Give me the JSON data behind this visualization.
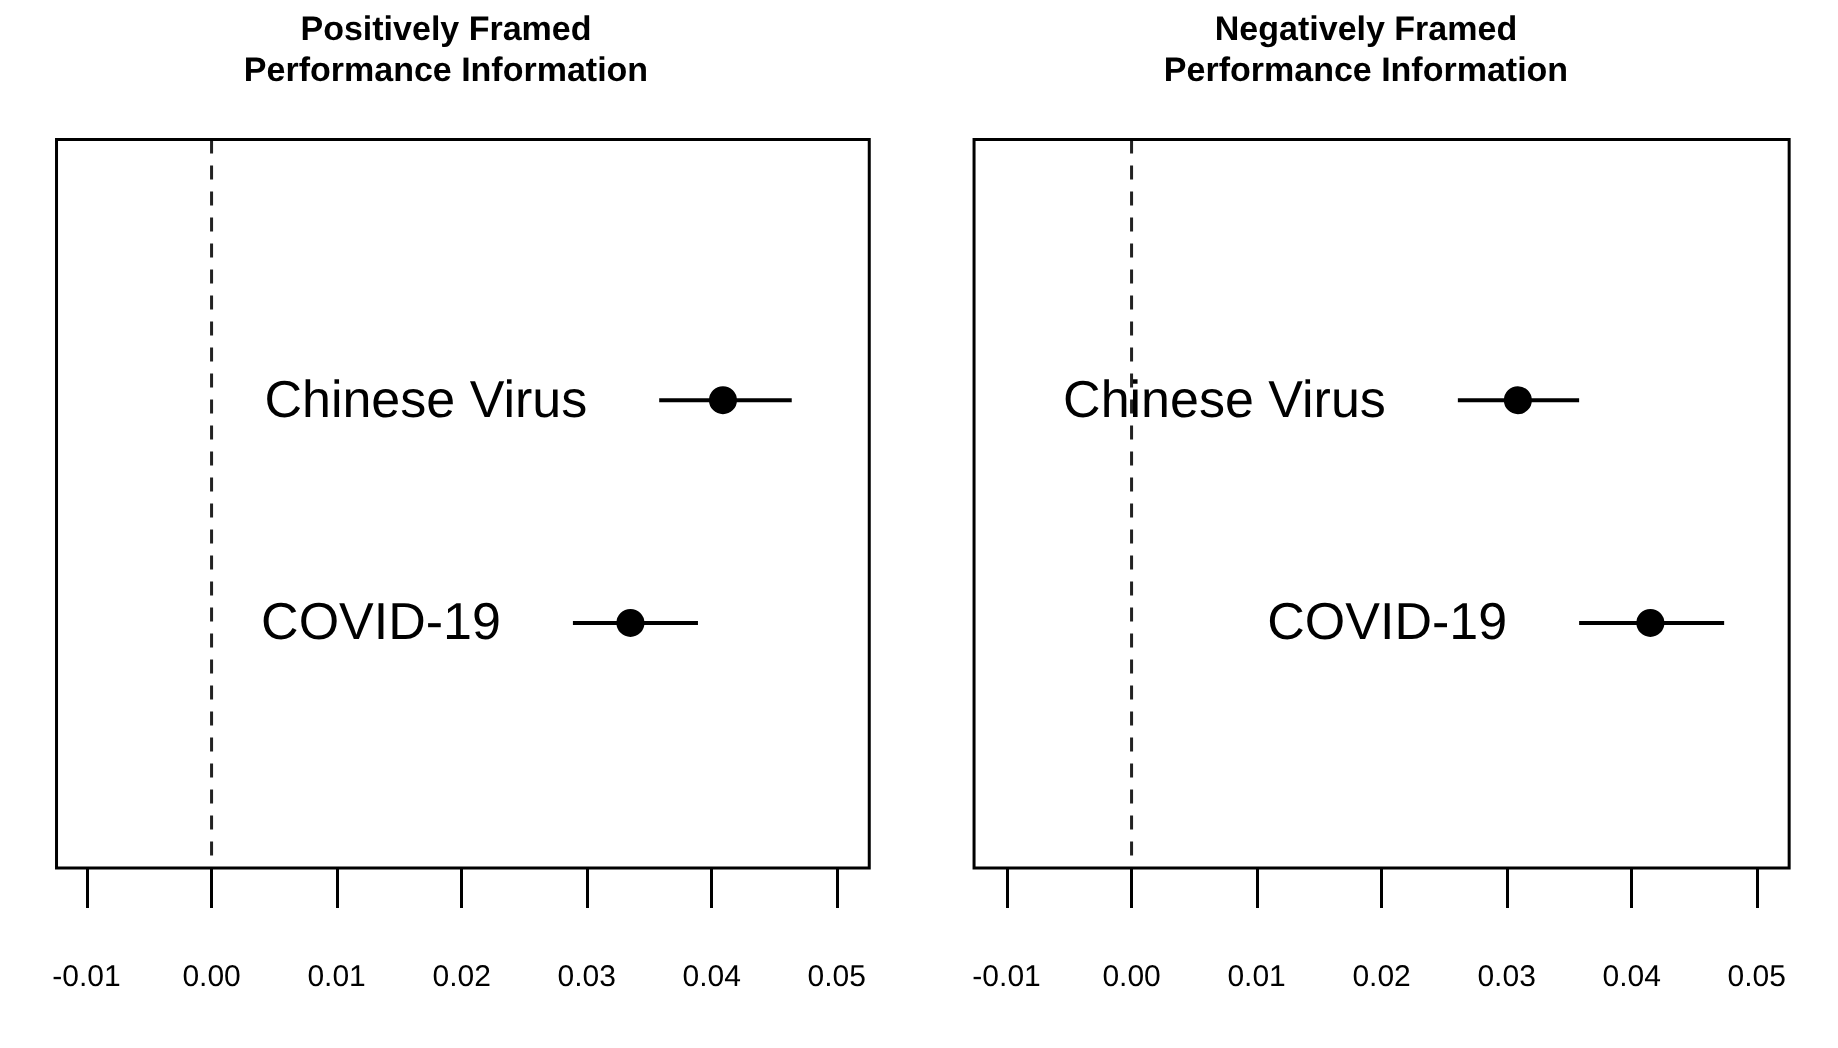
{
  "chart_data": [
    {
      "type": "scatter",
      "title": "Positively Framed\nPerformance Information",
      "orientation": "horizontal",
      "categories": [
        "Chinese Virus",
        "COVID-19"
      ],
      "values": [
        0.0409,
        0.0335
      ],
      "errors": [
        [
          0.0358,
          0.0464
        ],
        [
          0.0289,
          0.0389
        ]
      ],
      "color": "#000000",
      "marker": "circle",
      "xlim": [
        -0.0124,
        0.0526
      ],
      "xticks": [
        {
          "value": -0.01,
          "label": "-0.01"
        },
        {
          "value": 0,
          "label": "0.00"
        },
        {
          "value": 0.01,
          "label": "0.01"
        },
        {
          "value": 0.02,
          "label": "0.02"
        },
        {
          "value": 0.03,
          "label": "0.03"
        },
        {
          "value": 0.04,
          "label": "0.04"
        },
        {
          "value": 0.05,
          "label": "0.05"
        }
      ],
      "tick_labels": "x",
      "grid": false,
      "legend": false,
      "ref_lines": [
        {
          "axis": "x",
          "value": 0,
          "line_style": "dashed"
        }
      ]
    },
    {
      "type": "scatter",
      "title": "Negatively Framed\nPerformance Information",
      "orientation": "horizontal",
      "categories": [
        "Chinese Virus",
        "COVID-19"
      ],
      "values": [
        0.0309,
        0.0415
      ],
      "errors": [
        [
          0.0261,
          0.0358
        ],
        [
          0.0358,
          0.0474
        ]
      ],
      "color": "#000000",
      "marker": "circle",
      "xlim": [
        -0.0126,
        0.0526
      ],
      "xticks": [
        {
          "value": -0.01,
          "label": "-0.01"
        },
        {
          "value": 0,
          "label": "0.00"
        },
        {
          "value": 0.01,
          "label": "0.01"
        },
        {
          "value": 0.02,
          "label": "0.02"
        },
        {
          "value": 0.03,
          "label": "0.03"
        },
        {
          "value": 0.04,
          "label": "0.04"
        },
        {
          "value": 0.05,
          "label": "0.05"
        }
      ],
      "tick_labels": "x",
      "grid": false,
      "legend": false,
      "ref_lines": [
        {
          "axis": "x",
          "value": 0,
          "line_style": "dashed"
        }
      ]
    }
  ]
}
